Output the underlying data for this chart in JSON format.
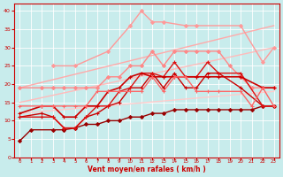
{
  "xlabel": "Vent moyen/en rafales ( km/h )",
  "bg_color": "#c8ecec",
  "grid_color": "#ffffff",
  "xlim": [
    -0.5,
    23.5
  ],
  "ylim": [
    0,
    42
  ],
  "yticks": [
    0,
    5,
    10,
    15,
    20,
    25,
    30,
    35,
    40
  ],
  "xticks": [
    0,
    1,
    2,
    3,
    4,
    5,
    6,
    7,
    8,
    9,
    10,
    11,
    12,
    13,
    14,
    15,
    16,
    17,
    18,
    19,
    20,
    21,
    22,
    23
  ],
  "series": [
    {
      "x": [
        0,
        23
      ],
      "y": [
        19,
        36
      ],
      "color": "#ffaaaa",
      "lw": 1.0,
      "marker": null,
      "ms": 0
    },
    {
      "x": [
        0,
        23
      ],
      "y": [
        15,
        30
      ],
      "color": "#ffbbbb",
      "lw": 1.0,
      "marker": null,
      "ms": 0
    },
    {
      "x": [
        0,
        23
      ],
      "y": [
        12,
        18
      ],
      "color": "#ffcccc",
      "lw": 1.0,
      "marker": null,
      "ms": 0
    },
    {
      "x": [
        3,
        5,
        8,
        10,
        11,
        12,
        13,
        15,
        16,
        20,
        22,
        23
      ],
      "y": [
        25,
        25,
        29,
        36,
        40,
        37,
        37,
        36,
        36,
        36,
        26,
        30
      ],
      "color": "#ff9999",
      "lw": 1.0,
      "marker": "D",
      "ms": 2.0
    },
    {
      "x": [
        0,
        2,
        3,
        4,
        5,
        6,
        7,
        8,
        9,
        10,
        11,
        12,
        13,
        14,
        15,
        16,
        17,
        18,
        19,
        20,
        21,
        22,
        23
      ],
      "y": [
        19,
        19,
        19,
        19,
        19,
        19,
        19,
        22,
        22,
        25,
        25,
        29,
        25,
        29,
        29,
        29,
        29,
        29,
        25,
        22,
        19,
        19,
        19
      ],
      "color": "#ff8888",
      "lw": 1.0,
      "marker": "D",
      "ms": 2.0
    },
    {
      "x": [
        0,
        1,
        3,
        4,
        5,
        6,
        7,
        8,
        9,
        10,
        11,
        12,
        13,
        14,
        15,
        16,
        17,
        18,
        19,
        20,
        21,
        22,
        23
      ],
      "y": [
        4.5,
        7.5,
        7.5,
        7.5,
        8,
        9,
        9,
        10,
        10,
        11,
        11,
        12,
        12,
        13,
        13,
        13,
        13,
        13,
        13,
        13,
        13,
        14,
        14
      ],
      "color": "#990000",
      "lw": 1.0,
      "marker": "D",
      "ms": 2.0
    },
    {
      "x": [
        0,
        2,
        3,
        4,
        5,
        6,
        7,
        8,
        9,
        10,
        11,
        12,
        13,
        14,
        15,
        16,
        17,
        18,
        20,
        22,
        23
      ],
      "y": [
        11,
        12,
        11,
        8,
        8,
        11,
        12,
        14,
        15,
        19,
        19,
        23,
        19,
        23,
        19,
        19,
        23,
        23,
        19,
        14,
        14
      ],
      "color": "#cc0000",
      "lw": 1.0,
      "marker": "+",
      "ms": 3.5
    },
    {
      "x": [
        0,
        2,
        3,
        4,
        5,
        6,
        7,
        8,
        9,
        10,
        11,
        12,
        13,
        14,
        15,
        16,
        17,
        18,
        20,
        22,
        23
      ],
      "y": [
        11,
        11,
        11,
        8,
        8,
        11,
        14,
        14,
        18,
        19,
        23,
        23,
        22,
        26,
        22,
        22,
        26,
        23,
        23,
        14,
        14
      ],
      "color": "#dd1111",
      "lw": 1.0,
      "marker": "+",
      "ms": 3.5
    },
    {
      "x": [
        0,
        2,
        3,
        4,
        5,
        6,
        7,
        8,
        9,
        10,
        11,
        12,
        13,
        14,
        15,
        16,
        17,
        18,
        20,
        22,
        23
      ],
      "y": [
        12,
        14,
        14,
        11,
        11,
        14,
        14,
        18,
        19,
        22,
        23,
        22,
        22,
        22,
        22,
        22,
        22,
        22,
        22,
        19,
        19
      ],
      "color": "#cc0000",
      "lw": 1.2,
      "marker": "+",
      "ms": 3.5
    },
    {
      "x": [
        0,
        2,
        3,
        4,
        5,
        6,
        7,
        8,
        9,
        10,
        11,
        12,
        13,
        14,
        15,
        16,
        17,
        18,
        20,
        21,
        22,
        23
      ],
      "y": [
        14,
        14,
        14,
        14,
        14,
        14,
        18,
        18,
        18,
        18,
        18,
        22,
        18,
        22,
        22,
        18,
        18,
        18,
        18,
        14,
        19,
        14
      ],
      "color": "#ff6666",
      "lw": 1.0,
      "marker": "+",
      "ms": 3.0
    }
  ]
}
